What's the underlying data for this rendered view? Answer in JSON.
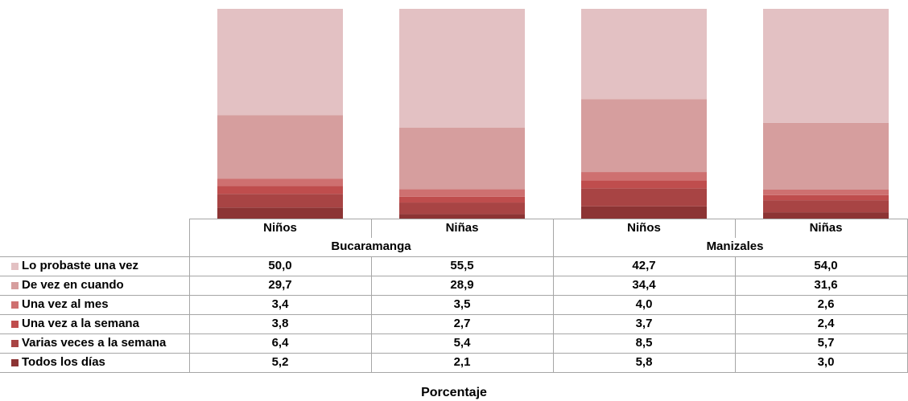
{
  "chart_data": {
    "type": "bar",
    "stacked": true,
    "percent_stacked": true,
    "title": "",
    "xlabel": "Porcentaje",
    "ylabel": "",
    "groups": [
      {
        "label": "Bucaramanga",
        "categories": [
          "Niños",
          "Niñas"
        ]
      },
      {
        "label": "Manizales",
        "categories": [
          "Niños",
          "Niñas"
        ]
      }
    ],
    "categories": [
      "Niños",
      "Niñas",
      "Niños",
      "Niñas"
    ],
    "series": [
      {
        "name": "Todos los días",
        "color": "#8c3434",
        "values": [
          5.2,
          2.1,
          5.8,
          3.0
        ],
        "labels": [
          "5,2",
          "2,1",
          "5,8",
          "3,0"
        ]
      },
      {
        "name": "Varias veces a la semana",
        "color": "#a84444",
        "values": [
          6.4,
          5.4,
          8.5,
          5.7
        ],
        "labels": [
          "6,4",
          "5,4",
          "8,5",
          "5,7"
        ]
      },
      {
        "name": "Una vez a la semana",
        "color": "#bf4d4d",
        "values": [
          3.8,
          2.7,
          3.7,
          2.4
        ],
        "labels": [
          "3,8",
          "2,7",
          "3,7",
          "2,4"
        ]
      },
      {
        "name": "Una vez al mes",
        "color": "#ce7070",
        "values": [
          3.4,
          3.5,
          4.0,
          2.6
        ],
        "labels": [
          "3,4",
          "3,5",
          "4,0",
          "2,6"
        ]
      },
      {
        "name": "De vez en cuando",
        "color": "#d69e9e",
        "values": [
          29.7,
          28.9,
          34.4,
          31.6
        ],
        "labels": [
          "29,7",
          "28,9",
          "34,4",
          "31,6"
        ]
      },
      {
        "name": "Lo probaste una vez",
        "color": "#e3c1c3",
        "values": [
          50.0,
          55.5,
          42.7,
          54.0
        ],
        "labels": [
          "50,0",
          "55,5",
          "42,7",
          "54,0"
        ]
      }
    ],
    "table_row_order": [
      "Lo probaste una vez",
      "De vez en cuando",
      "Una vez al mes",
      "Una vez a la semana",
      "Varias veces a la semana",
      "Todos los días"
    ],
    "legend_position": "table-left",
    "grid": false
  }
}
